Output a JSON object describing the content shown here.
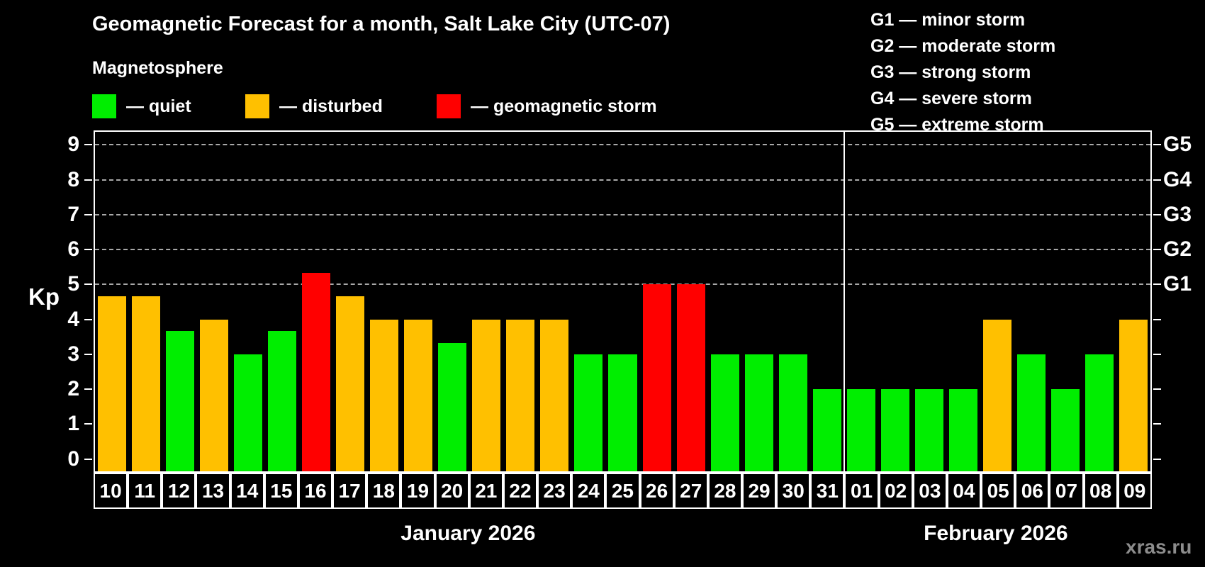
{
  "chart_data": {
    "type": "bar",
    "title": "Geomagnetic Forecast for a month, Salt Lake City (UTC-07)",
    "subtitle": "Magnetosphere",
    "ylabel": "Kp",
    "watermark": "xras.ru",
    "ylim": [
      -0.35,
      9.37
    ],
    "yticks": [
      0,
      1,
      2,
      3,
      4,
      5,
      6,
      7,
      8,
      9
    ],
    "grid": "dashed horizontal lines at G-storm levels only",
    "legend_position": "top-left",
    "legend": [
      {
        "key": "quiet",
        "label": "— quiet",
        "color": "#00ee00"
      },
      {
        "key": "disturbed",
        "label": "— disturbed",
        "color": "#ffc000"
      },
      {
        "key": "storm",
        "label": "— geomagnetic storm",
        "color": "#ff0000"
      }
    ],
    "g_scale": [
      {
        "code": "G5",
        "kp": 9
      },
      {
        "code": "G4",
        "kp": 8
      },
      {
        "code": "G3",
        "kp": 7
      },
      {
        "code": "G2",
        "kp": 6
      },
      {
        "code": "G1",
        "kp": 5
      }
    ],
    "g_legend": [
      "G1 — minor storm",
      "G2 — moderate storm",
      "G3 — strong storm",
      "G4 — severe storm",
      "G5 — extreme storm"
    ],
    "months": [
      {
        "label": "January 2026",
        "days": 22
      },
      {
        "label": "February 2026",
        "days": 9
      }
    ],
    "categories": [
      "10",
      "11",
      "12",
      "13",
      "14",
      "15",
      "16",
      "17",
      "18",
      "19",
      "20",
      "21",
      "22",
      "23",
      "24",
      "25",
      "26",
      "27",
      "28",
      "29",
      "30",
      "31",
      "01",
      "02",
      "03",
      "04",
      "05",
      "06",
      "07",
      "08",
      "09"
    ],
    "values": [
      4.67,
      4.67,
      3.67,
      4,
      3,
      3.67,
      5.33,
      4.67,
      4,
      4,
      3.33,
      4,
      4,
      4,
      3,
      3,
      5,
      5,
      3,
      3,
      3,
      2,
      2,
      2,
      2,
      2,
      4,
      3,
      2,
      3,
      4
    ],
    "status": [
      "disturbed",
      "disturbed",
      "quiet",
      "disturbed",
      "quiet",
      "quiet",
      "storm",
      "disturbed",
      "disturbed",
      "disturbed",
      "quiet",
      "disturbed",
      "disturbed",
      "disturbed",
      "quiet",
      "quiet",
      "storm",
      "storm",
      "quiet",
      "quiet",
      "quiet",
      "quiet",
      "quiet",
      "quiet",
      "quiet",
      "quiet",
      "disturbed",
      "quiet",
      "quiet",
      "quiet",
      "disturbed"
    ],
    "colors": {
      "quiet": "#00ee00",
      "disturbed": "#ffc000",
      "storm": "#ff0000"
    },
    "background": "#000000",
    "text_color": "#ffffff",
    "watermark_color": "#8c8c8c"
  }
}
